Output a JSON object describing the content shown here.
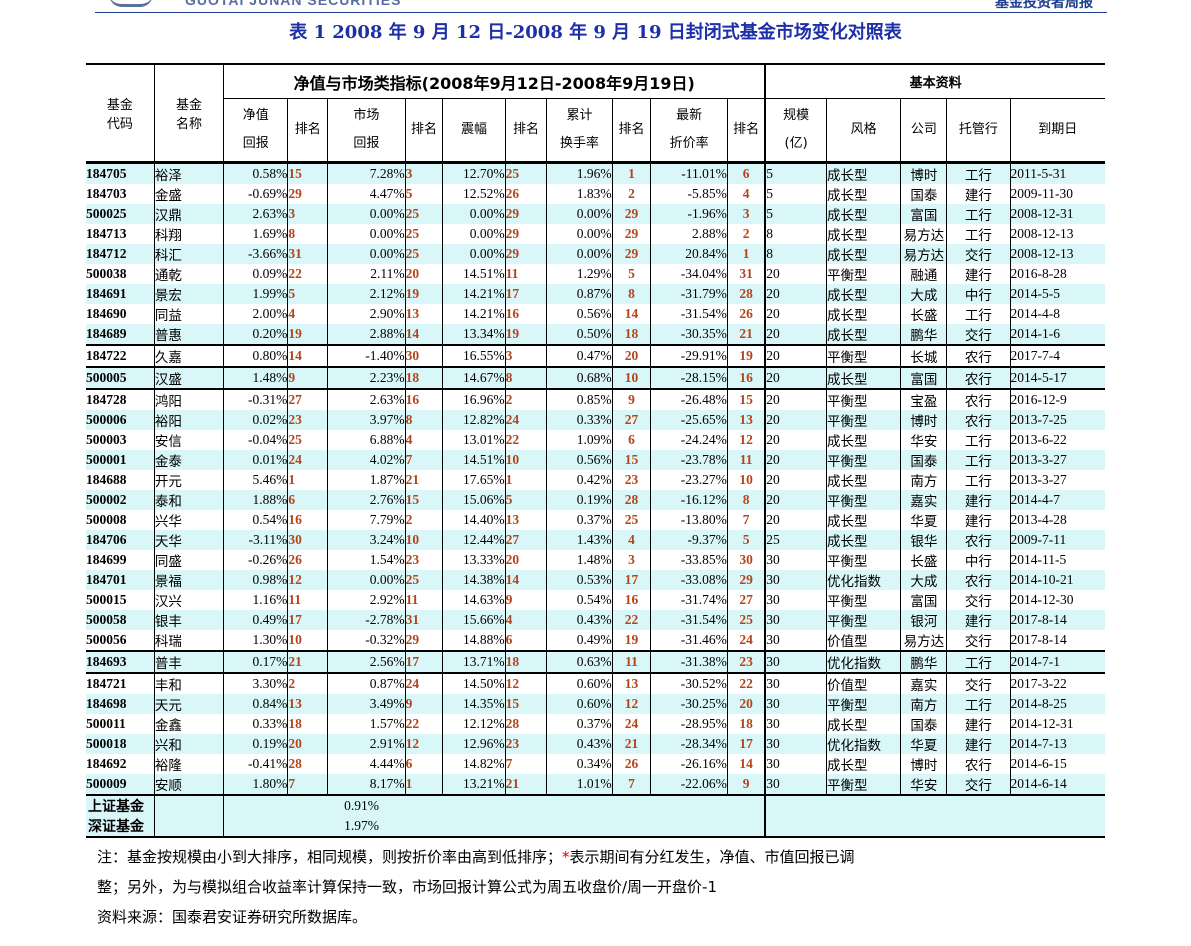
{
  "header": {
    "logo_text": "GUOTAI JUNAN SECURITIES",
    "report_name": "基金投资者周报"
  },
  "title": "表 1 2008 年 9 月 12 日-2008 年 9 月 19 日封闭式基金市场变化对照表",
  "table_headers": {
    "code": [
      "基金",
      "代码"
    ],
    "name": [
      "基金",
      "名称"
    ],
    "group_nav": "净值与市场类指标(2008年9月12日-2008年9月19日)",
    "group_basic": "基本资料",
    "nav_return": [
      "净值",
      "回报"
    ],
    "rank": "排名",
    "mkt_return": [
      "市场",
      "回报"
    ],
    "amplitude": "震幅",
    "turnover": [
      "累计",
      "换手率"
    ],
    "discount": [
      "最新",
      "折价率"
    ],
    "scale": [
      "规模",
      "(亿)"
    ],
    "style": "风格",
    "company": "公司",
    "custodian": "托管行",
    "maturity": "到期日"
  },
  "rows": [
    [
      "184705",
      "裕泽",
      "0.58%",
      "15",
      "7.28%",
      "3",
      "12.70%",
      "25",
      "1.96%",
      "1",
      "-11.01%",
      "6",
      "5",
      "成长型",
      "博时",
      "工行",
      "2011-5-31"
    ],
    [
      "184703",
      "金盛",
      "-0.69%",
      "29",
      "4.47%",
      "5",
      "12.52%",
      "26",
      "1.83%",
      "2",
      "-5.85%",
      "4",
      "5",
      "成长型",
      "国泰",
      "建行",
      "2009-11-30"
    ],
    [
      "500025",
      "汉鼎",
      "2.63%",
      "3",
      "0.00%",
      "25",
      "0.00%",
      "29",
      "0.00%",
      "29",
      "-1.96%",
      "3",
      "5",
      "成长型",
      "富国",
      "工行",
      "2008-12-31"
    ],
    [
      "184713",
      "科翔",
      "1.69%",
      "8",
      "0.00%",
      "25",
      "0.00%",
      "29",
      "0.00%",
      "29",
      "2.88%",
      "2",
      "8",
      "成长型",
      "易方达",
      "工行",
      "2008-12-13"
    ],
    [
      "184712",
      "科汇",
      "-3.66%",
      "31",
      "0.00%",
      "25",
      "0.00%",
      "29",
      "0.00%",
      "29",
      "20.84%",
      "1",
      "8",
      "成长型",
      "易方达",
      "交行",
      "2008-12-13"
    ],
    [
      "500038",
      "通乾",
      "0.09%",
      "22",
      "2.11%",
      "20",
      "14.51%",
      "11",
      "1.29%",
      "5",
      "-34.04%",
      "31",
      "20",
      "平衡型",
      "融通",
      "建行",
      "2016-8-28"
    ],
    [
      "184691",
      "景宏",
      "1.99%",
      "5",
      "2.12%",
      "19",
      "14.21%",
      "17",
      "0.87%",
      "8",
      "-31.79%",
      "28",
      "20",
      "成长型",
      "大成",
      "中行",
      "2014-5-5"
    ],
    [
      "184690",
      "同益",
      "2.00%",
      "4",
      "2.90%",
      "13",
      "14.21%",
      "16",
      "0.56%",
      "14",
      "-31.54%",
      "26",
      "20",
      "成长型",
      "长盛",
      "工行",
      "2014-4-8"
    ],
    [
      "184689",
      "普惠",
      "0.20%",
      "19",
      "2.88%",
      "14",
      "13.34%",
      "19",
      "0.50%",
      "18",
      "-30.35%",
      "21",
      "20",
      "成长型",
      "鹏华",
      "交行",
      "2014-1-6"
    ],
    [
      "184722",
      "久嘉",
      "0.80%",
      "14",
      "-1.40%",
      "30",
      "16.55%",
      "3",
      "0.47%",
      "20",
      "-29.91%",
      "19",
      "20",
      "平衡型",
      "长城",
      "农行",
      "2017-7-4"
    ],
    [
      "500005",
      "汉盛",
      "1.48%",
      "9",
      "2.23%",
      "18",
      "14.67%",
      "8",
      "0.68%",
      "10",
      "-28.15%",
      "16",
      "20",
      "成长型",
      "富国",
      "农行",
      "2014-5-17"
    ],
    [
      "184728",
      "鸿阳",
      "-0.31%",
      "27",
      "2.63%",
      "16",
      "16.96%",
      "2",
      "0.85%",
      "9",
      "-26.48%",
      "15",
      "20",
      "平衡型",
      "宝盈",
      "农行",
      "2016-12-9"
    ],
    [
      "500006",
      "裕阳",
      "0.02%",
      "23",
      "3.97%",
      "8",
      "12.82%",
      "24",
      "0.33%",
      "27",
      "-25.65%",
      "13",
      "20",
      "平衡型",
      "博时",
      "农行",
      "2013-7-25"
    ],
    [
      "500003",
      "安信",
      "-0.04%",
      "25",
      "6.88%",
      "4",
      "13.01%",
      "22",
      "1.09%",
      "6",
      "-24.24%",
      "12",
      "20",
      "成长型",
      "华安",
      "工行",
      "2013-6-22"
    ],
    [
      "500001",
      "金泰",
      "0.01%",
      "24",
      "4.02%",
      "7",
      "14.51%",
      "10",
      "0.56%",
      "15",
      "-23.78%",
      "11",
      "20",
      "平衡型",
      "国泰",
      "工行",
      "2013-3-27"
    ],
    [
      "184688",
      "开元",
      "5.46%",
      "1",
      "1.87%",
      "21",
      "17.65%",
      "1",
      "0.42%",
      "23",
      "-23.27%",
      "10",
      "20",
      "成长型",
      "南方",
      "工行",
      "2013-3-27"
    ],
    [
      "500002",
      "泰和",
      "1.88%",
      "6",
      "2.76%",
      "15",
      "15.06%",
      "5",
      "0.19%",
      "28",
      "-16.12%",
      "8",
      "20",
      "平衡型",
      "嘉实",
      "建行",
      "2014-4-7"
    ],
    [
      "500008",
      "兴华",
      "0.54%",
      "16",
      "7.79%",
      "2",
      "14.40%",
      "13",
      "0.37%",
      "25",
      "-13.80%",
      "7",
      "20",
      "成长型",
      "华夏",
      "建行",
      "2013-4-28"
    ],
    [
      "184706",
      "天华",
      "-3.11%",
      "30",
      "3.24%",
      "10",
      "12.44%",
      "27",
      "1.43%",
      "4",
      "-9.37%",
      "5",
      "25",
      "成长型",
      "银华",
      "农行",
      "2009-7-11"
    ],
    [
      "184699",
      "同盛",
      "-0.26%",
      "26",
      "1.54%",
      "23",
      "13.33%",
      "20",
      "1.48%",
      "3",
      "-33.85%",
      "30",
      "30",
      "平衡型",
      "长盛",
      "中行",
      "2014-11-5"
    ],
    [
      "184701",
      "景福",
      "0.98%",
      "12",
      "0.00%",
      "25",
      "14.38%",
      "14",
      "0.53%",
      "17",
      "-33.08%",
      "29",
      "30",
      "优化指数",
      "大成",
      "农行",
      "2014-10-21"
    ],
    [
      "500015",
      "汉兴",
      "1.16%",
      "11",
      "2.92%",
      "11",
      "14.63%",
      "9",
      "0.54%",
      "16",
      "-31.74%",
      "27",
      "30",
      "平衡型",
      "富国",
      "交行",
      "2014-12-30"
    ],
    [
      "500058",
      "银丰",
      "0.49%",
      "17",
      "-2.78%",
      "31",
      "15.66%",
      "4",
      "0.43%",
      "22",
      "-31.54%",
      "25",
      "30",
      "平衡型",
      "银河",
      "建行",
      "2017-8-14"
    ],
    [
      "500056",
      "科瑞",
      "1.30%",
      "10",
      "-0.32%",
      "29",
      "14.88%",
      "6",
      "0.49%",
      "19",
      "-31.46%",
      "24",
      "30",
      "价值型",
      "易方达",
      "交行",
      "2017-8-14"
    ],
    [
      "184693",
      "普丰",
      "0.17%",
      "21",
      "2.56%",
      "17",
      "13.71%",
      "18",
      "0.63%",
      "11",
      "-31.38%",
      "23",
      "30",
      "优化指数",
      "鹏华",
      "工行",
      "2014-7-1"
    ],
    [
      "184721",
      "丰和",
      "3.30%",
      "2",
      "0.87%",
      "24",
      "14.50%",
      "12",
      "0.60%",
      "13",
      "-30.52%",
      "22",
      "30",
      "价值型",
      "嘉实",
      "交行",
      "2017-3-22"
    ],
    [
      "184698",
      "天元",
      "0.84%",
      "13",
      "3.49%",
      "9",
      "14.35%",
      "15",
      "0.60%",
      "12",
      "-30.25%",
      "20",
      "30",
      "平衡型",
      "南方",
      "工行",
      "2014-8-25"
    ],
    [
      "500011",
      "金鑫",
      "0.33%",
      "18",
      "1.57%",
      "22",
      "12.12%",
      "28",
      "0.37%",
      "24",
      "-28.95%",
      "18",
      "30",
      "成长型",
      "国泰",
      "建行",
      "2014-12-31"
    ],
    [
      "500018",
      "兴和",
      "0.19%",
      "20",
      "2.91%",
      "12",
      "12.96%",
      "23",
      "0.43%",
      "21",
      "-28.34%",
      "17",
      "30",
      "优化指数",
      "华夏",
      "建行",
      "2014-7-13"
    ],
    [
      "184692",
      "裕隆",
      "-0.41%",
      "28",
      "4.44%",
      "6",
      "14.82%",
      "7",
      "0.34%",
      "26",
      "-26.16%",
      "14",
      "30",
      "成长型",
      "博时",
      "农行",
      "2014-6-15"
    ],
    [
      "500009",
      "安顺",
      "1.80%",
      "7",
      "8.17%",
      "1",
      "13.21%",
      "21",
      "1.01%",
      "7",
      "-22.06%",
      "9",
      "30",
      "平衡型",
      "华安",
      "交行",
      "2014-6-14"
    ]
  ],
  "index_rows": [
    {
      "name": "上证基金",
      "value": "0.91%"
    },
    {
      "name": "深证基金",
      "value": "1.97%"
    }
  ],
  "notes": {
    "line1_prefix": "注：基金按规模由小到大排序，相同规模，则按折价率由高到低排序；",
    "line1_star": "*",
    "line1_suffix": "表示期间有分红发生，净值、市值回报已调",
    "line2": "整；另外，为与模拟组合收益率计算保持一致，市场回报计算公式为周五收盘价/周一开盘价-1",
    "line3": "资料来源：国泰君安证券研究所数据库。"
  },
  "colors": {
    "title": "#1d2fa6",
    "rank": "#b4451a",
    "row_alt": "#d9f7f9",
    "note_star": "#d00000"
  }
}
